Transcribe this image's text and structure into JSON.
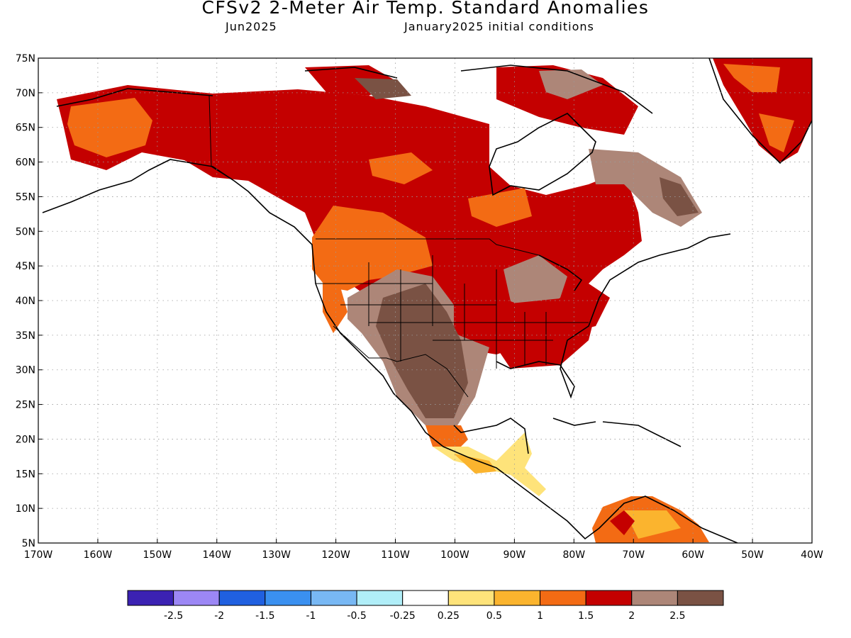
{
  "header": {
    "title": "CFSv2 2-Meter Air Temp. Standard Anomalies",
    "valid_month": "Jun2025",
    "init": "January2025 initial conditions"
  },
  "axes": {
    "lat_labels": [
      "75N",
      "70N",
      "65N",
      "60N",
      "55N",
      "50N",
      "45N",
      "40N",
      "35N",
      "30N",
      "25N",
      "20N",
      "15N",
      "10N",
      "5N"
    ],
    "lon_labels": [
      "170W",
      "160W",
      "150W",
      "140W",
      "130W",
      "120W",
      "110W",
      "100W",
      "90W",
      "80W",
      "70W",
      "60W",
      "50W",
      "40W"
    ],
    "lat_range": [
      5,
      75
    ],
    "lon_range": [
      -170,
      -40
    ]
  },
  "colorbar": {
    "colors": [
      "#3b22b3",
      "#9c87f5",
      "#2060e0",
      "#3a90f0",
      "#78b8f4",
      "#b0eef8",
      "#ffffff",
      "#fee37a",
      "#fbb42e",
      "#f36b14",
      "#c40000",
      "#ad8678",
      "#7a5244"
    ],
    "labels": [
      "-2.5",
      "-2",
      "-1.5",
      "-1",
      "-0.5",
      "-0.25",
      "0.25",
      "0.5",
      "1",
      "1.5",
      "2",
      "2.5"
    ]
  }
}
